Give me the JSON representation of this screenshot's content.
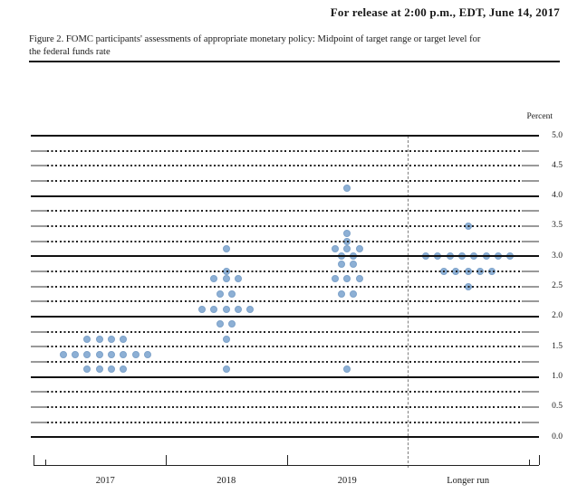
{
  "header": {
    "release_text": "For release at 2:00 p.m., EDT, June 14, 2017"
  },
  "caption": {
    "line1": "Figure 2. FOMC participants' assessments of appropriate monetary policy: Midpoint of target range or target level for",
    "line2": "the federal funds rate"
  },
  "chart_data": {
    "type": "scatter",
    "title": "FOMC participants' assessments of appropriate monetary policy: Midpoint of target range or target level for the federal funds rate",
    "unit_label": "Percent",
    "ylim": [
      0.0,
      5.0
    ],
    "grid_interval": 0.25,
    "label_interval": 0.5,
    "ytick_labels": [
      "5.0",
      "4.5",
      "4.0",
      "3.5",
      "3.0",
      "2.5",
      "2.0",
      "1.5",
      "1.0",
      "0.5",
      "0.0"
    ],
    "x_categories": [
      "2017",
      "2018",
      "2019",
      "Longer run"
    ],
    "grid": "solid lines at whole percents, dotted lines at quarter percents",
    "legend": "none",
    "series": [
      {
        "category": "2017",
        "dots": [
          {
            "rate": 1.625,
            "count": 4
          },
          {
            "rate": 1.375,
            "count": 8
          },
          {
            "rate": 1.125,
            "count": 4
          }
        ]
      },
      {
        "category": "2018",
        "dots": [
          {
            "rate": 3.125,
            "count": 1
          },
          {
            "rate": 2.75,
            "count": 1
          },
          {
            "rate": 2.625,
            "count": 3
          },
          {
            "rate": 2.375,
            "count": 2
          },
          {
            "rate": 2.125,
            "count": 5
          },
          {
            "rate": 1.875,
            "count": 2
          },
          {
            "rate": 1.625,
            "count": 1
          },
          {
            "rate": 1.125,
            "count": 1
          }
        ]
      },
      {
        "category": "2019",
        "dots": [
          {
            "rate": 4.125,
            "count": 1
          },
          {
            "rate": 3.375,
            "count": 1
          },
          {
            "rate": 3.25,
            "count": 1
          },
          {
            "rate": 3.125,
            "count": 3
          },
          {
            "rate": 3.0,
            "count": 2
          },
          {
            "rate": 2.875,
            "count": 2
          },
          {
            "rate": 2.625,
            "count": 3
          },
          {
            "rate": 2.375,
            "count": 2
          },
          {
            "rate": 1.125,
            "count": 1
          }
        ]
      },
      {
        "category": "Longer run",
        "dots": [
          {
            "rate": 3.5,
            "count": 1
          },
          {
            "rate": 3.0,
            "count": 8
          },
          {
            "rate": 2.75,
            "count": 5
          },
          {
            "rate": 2.5,
            "count": 1
          }
        ]
      }
    ],
    "colors": {
      "dot_fill": "#8DB0D5",
      "dot_edge": "#7DA2C9",
      "solid_gridline": "#111111",
      "dotted_gridline": "#222222",
      "gridline_stub": "#999999",
      "longer_run_divider": "#808080",
      "axis": "#222222",
      "text": "#1a1a1a"
    }
  }
}
